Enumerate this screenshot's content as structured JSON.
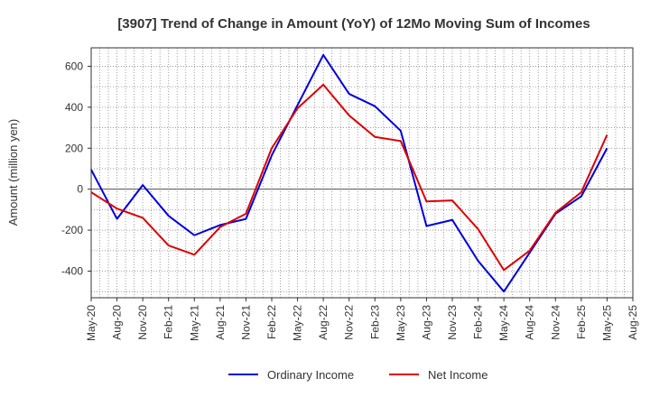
{
  "chart_data": {
    "type": "line",
    "title": "[3907]  Trend of Change in Amount (YoY) of 12Mo Moving Sum of Incomes",
    "ylabel": "Amount (million yen)",
    "xlabel": "",
    "ylim": [
      -530,
      690
    ],
    "yticks": [
      600,
      400,
      200,
      0,
      -200,
      -400
    ],
    "ytick_labels": [
      "600",
      "400",
      "200",
      "0",
      "-200",
      "-400"
    ],
    "x": [
      "May-20",
      "Aug-20",
      "Nov-20",
      "Feb-21",
      "May-21",
      "Aug-21",
      "Nov-21",
      "Feb-22",
      "May-22",
      "Aug-22",
      "Nov-22",
      "Feb-23",
      "May-23",
      "Aug-23",
      "Nov-23",
      "Feb-24",
      "May-24",
      "Aug-24",
      "Nov-24",
      "Feb-25",
      "May-25",
      "Aug-25"
    ],
    "grid": true,
    "legend_position": "bottom",
    "series": [
      {
        "name": "Ordinary Income",
        "color": "#0000dd",
        "values": [
          95,
          -145,
          20,
          -130,
          -225,
          -175,
          -145,
          165,
          410,
          655,
          465,
          405,
          285,
          -180,
          -150,
          -350,
          -500,
          -310,
          -120,
          -35,
          200,
          null
        ]
      },
      {
        "name": "Net Income",
        "color": "#dd0000",
        "values": [
          -15,
          -95,
          -140,
          -275,
          -320,
          -185,
          -120,
          200,
          395,
          510,
          360,
          255,
          235,
          -60,
          -55,
          -195,
          -395,
          -300,
          -115,
          -15,
          265,
          null
        ]
      }
    ]
  }
}
